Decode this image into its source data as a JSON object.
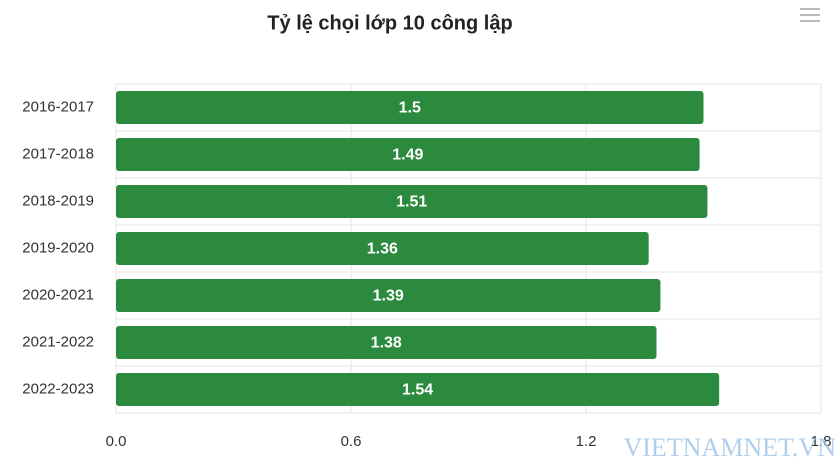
{
  "chart_data": {
    "type": "hbar",
    "title": "Tỷ lệ chọi lớp 10 công lập",
    "categories": [
      "2016-2017",
      "2017-2018",
      "2018-2019",
      "2019-2020",
      "2020-2021",
      "2021-2022",
      "2022-2023"
    ],
    "values": [
      1.5,
      1.49,
      1.51,
      1.36,
      1.39,
      1.38,
      1.54
    ],
    "color": "#2b8a3e",
    "xlim": [
      0,
      1.8
    ],
    "xticks": [
      {
        "value": 0,
        "label": "0.0"
      },
      0.6,
      1.2,
      1.8
    ],
    "grid": true,
    "watermark": "VIETNAMNET.VN"
  }
}
